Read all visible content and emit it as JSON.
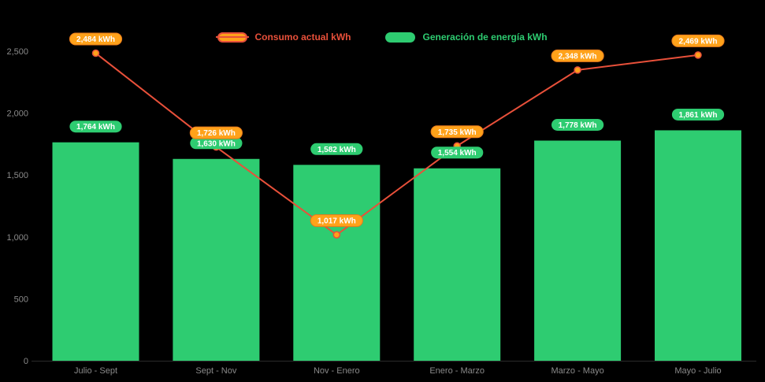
{
  "legend": {
    "items": [
      {
        "label": "Consumo actual kWh"
      },
      {
        "label": "Generación de energía kWh"
      }
    ]
  },
  "chart_data": {
    "type": "bar+line",
    "title": "",
    "xlabel": "",
    "ylabel": "",
    "categories": [
      "Julio - Sept",
      "Sept - Nov",
      "Nov - Enero",
      "Enero - Marzo",
      "Marzo - Mayo",
      "Mayo - Julio"
    ],
    "series": [
      {
        "name": "Generación de energía kWh",
        "type": "bar",
        "color": "#2ecc71",
        "values": [
          1764,
          1630,
          1582,
          1554,
          1778,
          1861
        ],
        "point_labels": [
          "1,764 kWh",
          "1,630 kWh",
          "1,582 kWh",
          "1,554 kWh",
          "1,778 kWh",
          "1,861 kWh"
        ]
      },
      {
        "name": "Consumo actual kWh",
        "type": "line",
        "color": "#e8503a",
        "marker_color": "#ffa21a",
        "marker_border_color": "#e8503a",
        "values": [
          2484,
          1726,
          1017,
          1735,
          2348,
          2469
        ],
        "point_labels": [
          "2,484 kWh",
          "1,726 kWh",
          "1,017 kWh",
          "1,735 kWh",
          "2,348 kWh",
          "2,469 kWh"
        ]
      }
    ],
    "ylim": [
      0,
      2500
    ],
    "yticks": [
      0,
      500,
      1000,
      1500,
      2000,
      2500
    ],
    "ytick_labels": [
      "0",
      "500",
      "1,000",
      "1,500",
      "2,000",
      "2,500"
    ],
    "grid": false,
    "legend_position": "top-center",
    "background": "#000000",
    "axis_text_color": "#8a8a8a",
    "pill_text_color": "#ffffff",
    "pill_orange_border": "#e8791a"
  }
}
